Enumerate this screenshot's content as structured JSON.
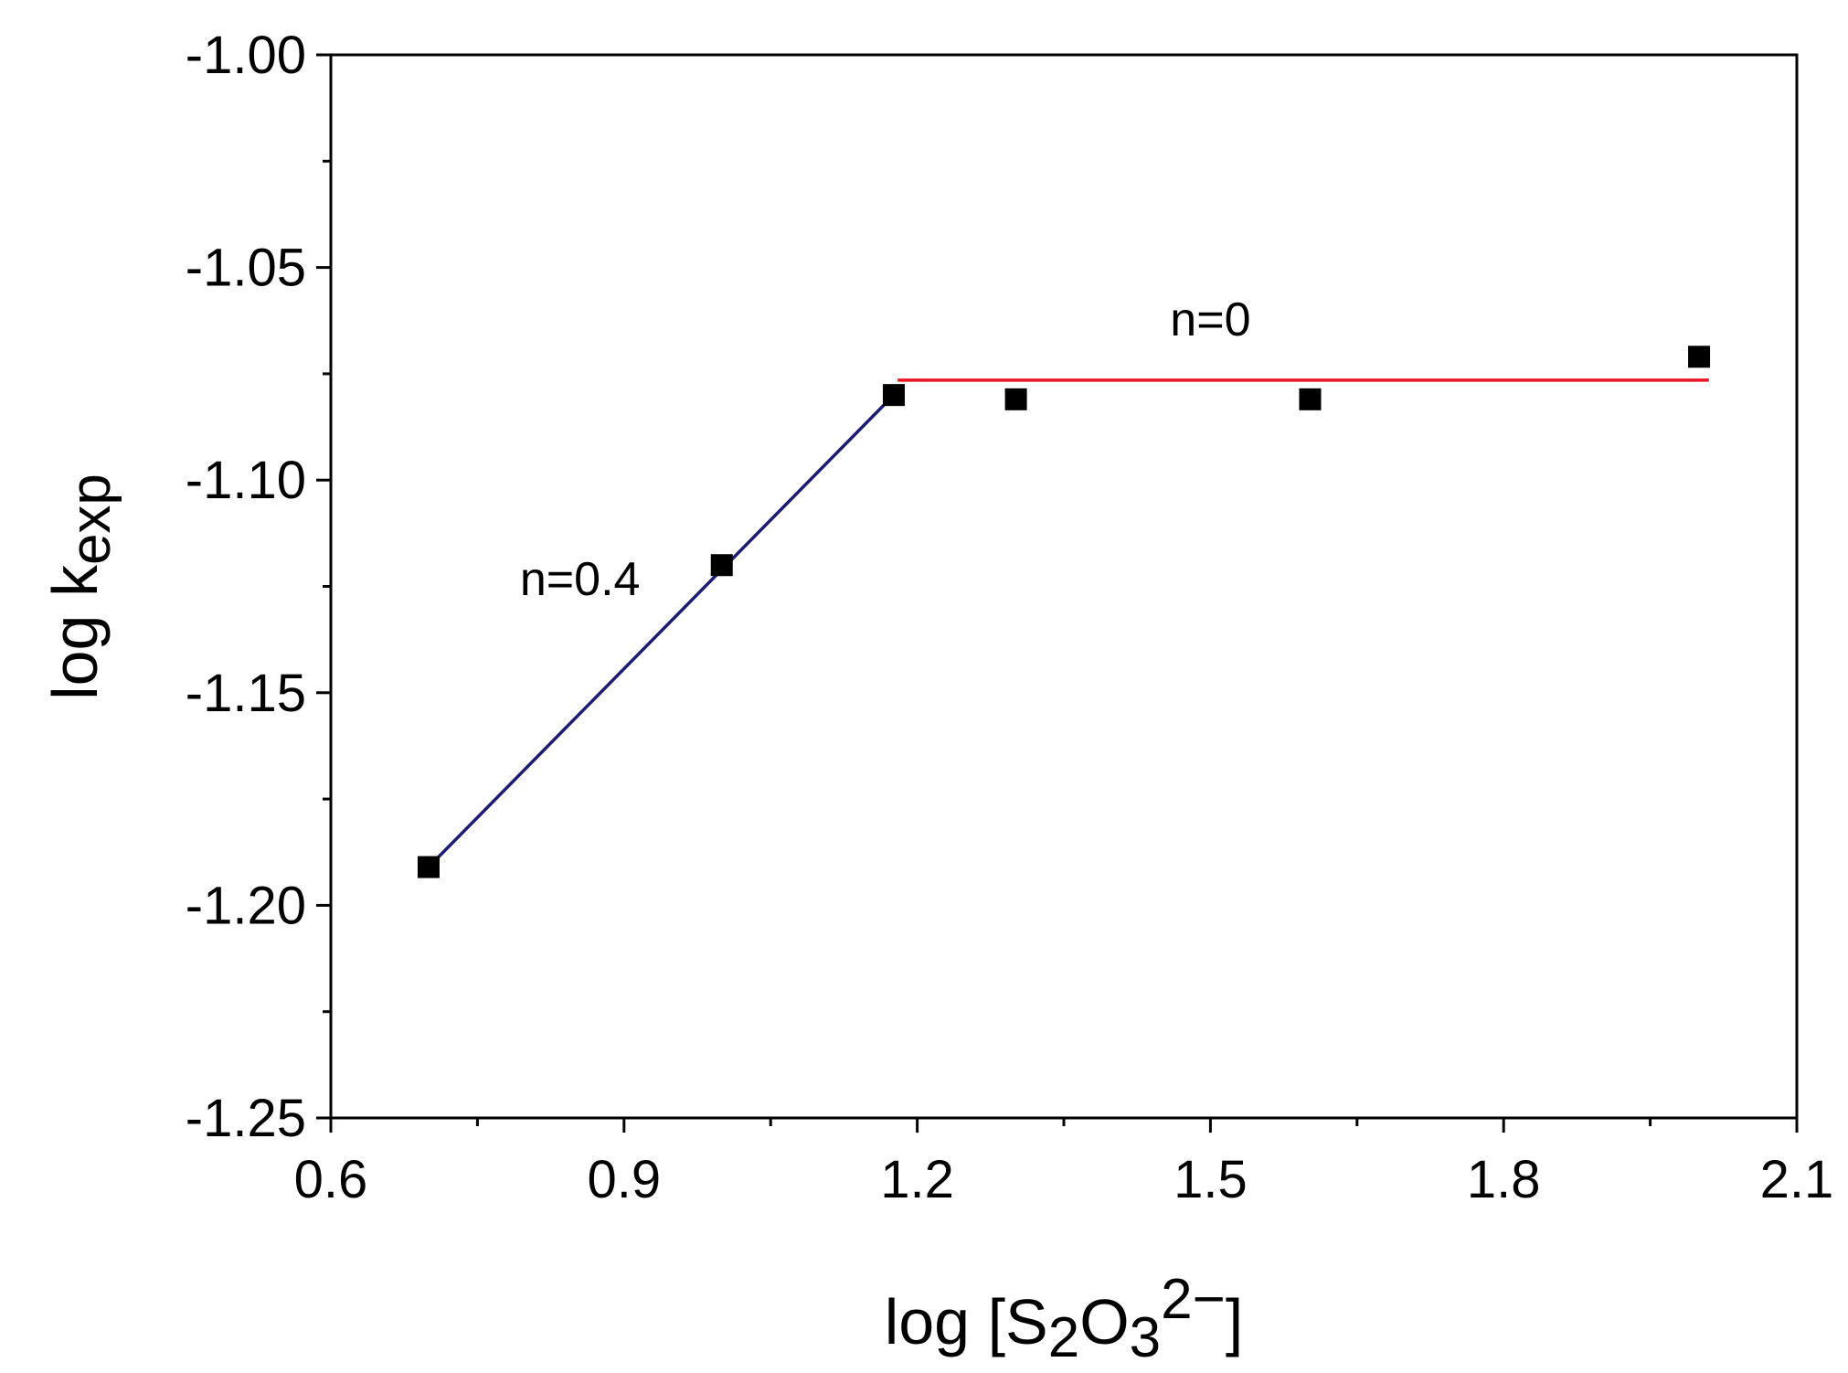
{
  "chart_data": {
    "type": "scatter",
    "xlabel": {
      "main": "log [S",
      "sub1": "2",
      "mid": "O",
      "sub2": "3",
      "sup": "2−",
      "end": "]"
    },
    "ylabel": {
      "main": "log k",
      "sub": "exp"
    },
    "xlim": [
      0.6,
      2.1
    ],
    "ylim": [
      -1.25,
      -1.0
    ],
    "x_major_ticks": [
      0.6,
      0.9,
      1.2,
      1.5,
      1.8,
      2.1
    ],
    "x_tick_labels": [
      "0.6",
      "0.9",
      "1.2",
      "1.5",
      "1.8",
      "2.1"
    ],
    "y_major_ticks": [
      -1.25,
      -1.2,
      -1.15,
      -1.1,
      -1.05,
      -1.0
    ],
    "y_tick_labels": [
      "-1.25",
      "-1.20",
      "-1.15",
      "-1.10",
      "-1.05",
      "-1.00"
    ],
    "grid": false,
    "points": [
      {
        "x": 0.7,
        "y": -1.191
      },
      {
        "x": 1.0,
        "y": -1.12
      },
      {
        "x": 1.176,
        "y": -1.08
      },
      {
        "x": 1.301,
        "y": -1.081
      },
      {
        "x": 1.602,
        "y": -1.081
      },
      {
        "x": 2.0,
        "y": -1.071
      }
    ],
    "fit_lines": [
      {
        "label": "n=0.4",
        "color": "#1c1c78",
        "from": [
          0.7,
          -1.191
        ],
        "to": [
          1.176,
          -1.08
        ]
      },
      {
        "label": "n=0",
        "color": "#e8141e",
        "from": [
          1.18,
          -1.0765
        ],
        "to": [
          2.01,
          -1.0765
        ]
      }
    ],
    "annotations": [
      {
        "text": "n=0.4",
        "x": 0.855,
        "y": -1.127
      },
      {
        "text": "n=0",
        "x": 1.5,
        "y": -1.066
      }
    ]
  }
}
